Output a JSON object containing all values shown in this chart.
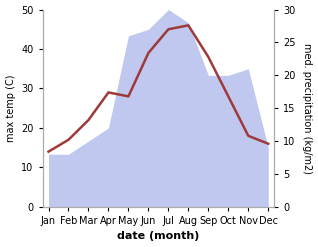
{
  "months": [
    "Jan",
    "Feb",
    "Mar",
    "Apr",
    "May",
    "Jun",
    "Jul",
    "Aug",
    "Sep",
    "Oct",
    "Nov",
    "Dec"
  ],
  "temperature": [
    14,
    17,
    22,
    29,
    28,
    39,
    45,
    46,
    38,
    28,
    18,
    16
  ],
  "precipitation": [
    8,
    8,
    10,
    12,
    26,
    27,
    30,
    28,
    20,
    20,
    21,
    9
  ],
  "temp_color": "#9e3a3a",
  "precip_fill_color": "#c0c8f0",
  "temp_ylim": [
    0,
    50
  ],
  "precip_ylim": [
    0,
    30
  ],
  "xlabel": "date (month)",
  "ylabel_left": "max temp (C)",
  "ylabel_right": "med. precipitation (kg/m2)",
  "temp_linewidth": 1.8,
  "fig_width": 3.18,
  "fig_height": 2.47,
  "dpi": 100
}
